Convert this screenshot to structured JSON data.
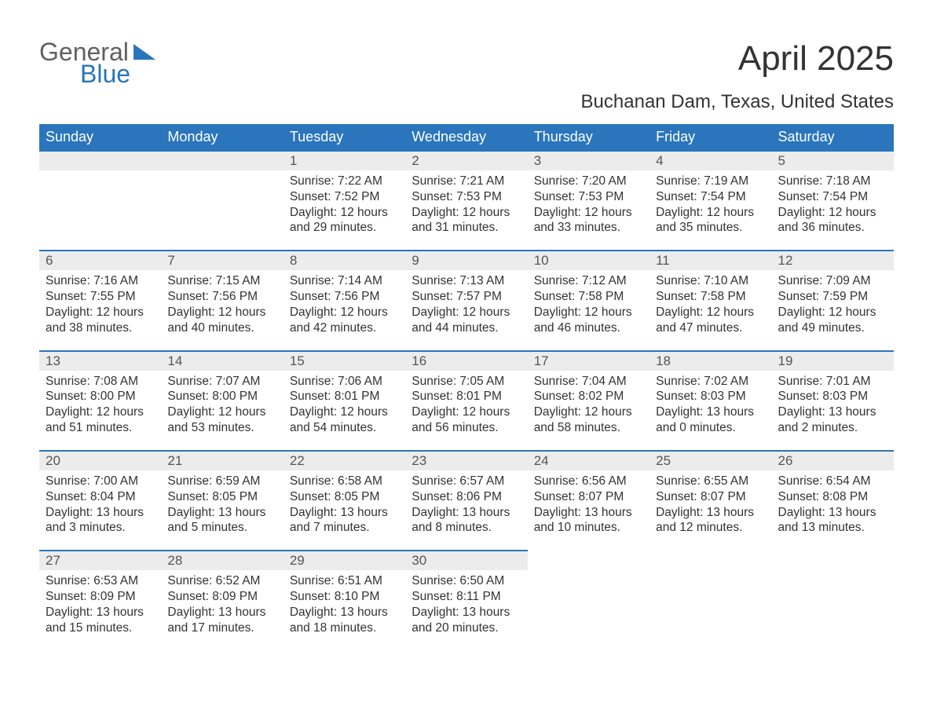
{
  "logo": {
    "word1": "General",
    "word2": "Blue",
    "tri_color": "#2a75bb",
    "word1_color": "#606060",
    "word2_color": "#2a75bb"
  },
  "title": "April 2025",
  "subtitle": "Buchanan Dam, Texas, United States",
  "colors": {
    "header_bg": "#2a75bb",
    "header_text": "#ffffff",
    "daynum_bg": "#ececec",
    "row_top_border": "#2a75bb",
    "body_text": "#333333",
    "page_bg": "#ffffff"
  },
  "fonts": {
    "title_size": 44,
    "subtitle_size": 24,
    "header_size": 18,
    "daynum_size": 17,
    "cell_size": 15.5
  },
  "layout": {
    "columns": 7,
    "week_rows": 5,
    "cell_lines": 4
  },
  "days_of_week": [
    "Sunday",
    "Monday",
    "Tuesday",
    "Wednesday",
    "Thursday",
    "Friday",
    "Saturday"
  ],
  "weeks": [
    [
      null,
      null,
      {
        "n": "1",
        "sunrise": "Sunrise: 7:22 AM",
        "sunset": "Sunset: 7:52 PM",
        "d1": "Daylight: 12 hours",
        "d2": "and 29 minutes."
      },
      {
        "n": "2",
        "sunrise": "Sunrise: 7:21 AM",
        "sunset": "Sunset: 7:53 PM",
        "d1": "Daylight: 12 hours",
        "d2": "and 31 minutes."
      },
      {
        "n": "3",
        "sunrise": "Sunrise: 7:20 AM",
        "sunset": "Sunset: 7:53 PM",
        "d1": "Daylight: 12 hours",
        "d2": "and 33 minutes."
      },
      {
        "n": "4",
        "sunrise": "Sunrise: 7:19 AM",
        "sunset": "Sunset: 7:54 PM",
        "d1": "Daylight: 12 hours",
        "d2": "and 35 minutes."
      },
      {
        "n": "5",
        "sunrise": "Sunrise: 7:18 AM",
        "sunset": "Sunset: 7:54 PM",
        "d1": "Daylight: 12 hours",
        "d2": "and 36 minutes."
      }
    ],
    [
      {
        "n": "6",
        "sunrise": "Sunrise: 7:16 AM",
        "sunset": "Sunset: 7:55 PM",
        "d1": "Daylight: 12 hours",
        "d2": "and 38 minutes."
      },
      {
        "n": "7",
        "sunrise": "Sunrise: 7:15 AM",
        "sunset": "Sunset: 7:56 PM",
        "d1": "Daylight: 12 hours",
        "d2": "and 40 minutes."
      },
      {
        "n": "8",
        "sunrise": "Sunrise: 7:14 AM",
        "sunset": "Sunset: 7:56 PM",
        "d1": "Daylight: 12 hours",
        "d2": "and 42 minutes."
      },
      {
        "n": "9",
        "sunrise": "Sunrise: 7:13 AM",
        "sunset": "Sunset: 7:57 PM",
        "d1": "Daylight: 12 hours",
        "d2": "and 44 minutes."
      },
      {
        "n": "10",
        "sunrise": "Sunrise: 7:12 AM",
        "sunset": "Sunset: 7:58 PM",
        "d1": "Daylight: 12 hours",
        "d2": "and 46 minutes."
      },
      {
        "n": "11",
        "sunrise": "Sunrise: 7:10 AM",
        "sunset": "Sunset: 7:58 PM",
        "d1": "Daylight: 12 hours",
        "d2": "and 47 minutes."
      },
      {
        "n": "12",
        "sunrise": "Sunrise: 7:09 AM",
        "sunset": "Sunset: 7:59 PM",
        "d1": "Daylight: 12 hours",
        "d2": "and 49 minutes."
      }
    ],
    [
      {
        "n": "13",
        "sunrise": "Sunrise: 7:08 AM",
        "sunset": "Sunset: 8:00 PM",
        "d1": "Daylight: 12 hours",
        "d2": "and 51 minutes."
      },
      {
        "n": "14",
        "sunrise": "Sunrise: 7:07 AM",
        "sunset": "Sunset: 8:00 PM",
        "d1": "Daylight: 12 hours",
        "d2": "and 53 minutes."
      },
      {
        "n": "15",
        "sunrise": "Sunrise: 7:06 AM",
        "sunset": "Sunset: 8:01 PM",
        "d1": "Daylight: 12 hours",
        "d2": "and 54 minutes."
      },
      {
        "n": "16",
        "sunrise": "Sunrise: 7:05 AM",
        "sunset": "Sunset: 8:01 PM",
        "d1": "Daylight: 12 hours",
        "d2": "and 56 minutes."
      },
      {
        "n": "17",
        "sunrise": "Sunrise: 7:04 AM",
        "sunset": "Sunset: 8:02 PM",
        "d1": "Daylight: 12 hours",
        "d2": "and 58 minutes."
      },
      {
        "n": "18",
        "sunrise": "Sunrise: 7:02 AM",
        "sunset": "Sunset: 8:03 PM",
        "d1": "Daylight: 13 hours",
        "d2": "and 0 minutes."
      },
      {
        "n": "19",
        "sunrise": "Sunrise: 7:01 AM",
        "sunset": "Sunset: 8:03 PM",
        "d1": "Daylight: 13 hours",
        "d2": "and 2 minutes."
      }
    ],
    [
      {
        "n": "20",
        "sunrise": "Sunrise: 7:00 AM",
        "sunset": "Sunset: 8:04 PM",
        "d1": "Daylight: 13 hours",
        "d2": "and 3 minutes."
      },
      {
        "n": "21",
        "sunrise": "Sunrise: 6:59 AM",
        "sunset": "Sunset: 8:05 PM",
        "d1": "Daylight: 13 hours",
        "d2": "and 5 minutes."
      },
      {
        "n": "22",
        "sunrise": "Sunrise: 6:58 AM",
        "sunset": "Sunset: 8:05 PM",
        "d1": "Daylight: 13 hours",
        "d2": "and 7 minutes."
      },
      {
        "n": "23",
        "sunrise": "Sunrise: 6:57 AM",
        "sunset": "Sunset: 8:06 PM",
        "d1": "Daylight: 13 hours",
        "d2": "and 8 minutes."
      },
      {
        "n": "24",
        "sunrise": "Sunrise: 6:56 AM",
        "sunset": "Sunset: 8:07 PM",
        "d1": "Daylight: 13 hours",
        "d2": "and 10 minutes."
      },
      {
        "n": "25",
        "sunrise": "Sunrise: 6:55 AM",
        "sunset": "Sunset: 8:07 PM",
        "d1": "Daylight: 13 hours",
        "d2": "and 12 minutes."
      },
      {
        "n": "26",
        "sunrise": "Sunrise: 6:54 AM",
        "sunset": "Sunset: 8:08 PM",
        "d1": "Daylight: 13 hours",
        "d2": "and 13 minutes."
      }
    ],
    [
      {
        "n": "27",
        "sunrise": "Sunrise: 6:53 AM",
        "sunset": "Sunset: 8:09 PM",
        "d1": "Daylight: 13 hours",
        "d2": "and 15 minutes."
      },
      {
        "n": "28",
        "sunrise": "Sunrise: 6:52 AM",
        "sunset": "Sunset: 8:09 PM",
        "d1": "Daylight: 13 hours",
        "d2": "and 17 minutes."
      },
      {
        "n": "29",
        "sunrise": "Sunrise: 6:51 AM",
        "sunset": "Sunset: 8:10 PM",
        "d1": "Daylight: 13 hours",
        "d2": "and 18 minutes."
      },
      {
        "n": "30",
        "sunrise": "Sunrise: 6:50 AM",
        "sunset": "Sunset: 8:11 PM",
        "d1": "Daylight: 13 hours",
        "d2": "and 20 minutes."
      },
      null,
      null,
      null
    ]
  ]
}
